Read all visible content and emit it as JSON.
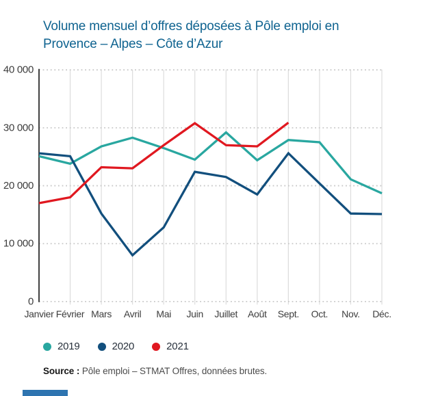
{
  "page": {
    "title": "Volume mensuel d’offres déposées à Pôle emploi en Provence – Alpes – Côte d’Azur",
    "title_color": "#0f6390",
    "accent_bar_color": "#2e74b0"
  },
  "chart_data": {
    "type": "line",
    "title": "Volume mensuel d’offres déposées à Pôle emploi en Provence – Alpes – Côte d’Azur",
    "categories": [
      "Janvier",
      "Février",
      "Mars",
      "Avril",
      "Mai",
      "Juin",
      "Juillet",
      "Août",
      "Sept.",
      "Oct.",
      "Nov.",
      "Déc."
    ],
    "y_ticks": [
      {
        "label": "40 000",
        "value": 40000
      },
      {
        "label": "30 000",
        "value": 30000
      },
      {
        "label": "20 000",
        "value": 20000
      },
      {
        "label": "10 000",
        "value": 10000
      },
      {
        "label": "0",
        "value": 0
      }
    ],
    "ylim": [
      0,
      40000
    ],
    "grid": {
      "vertical": "solid",
      "horizontal": "dotted"
    },
    "legend_position": "bottom",
    "series": [
      {
        "name": "2019",
        "color": "#29a7a0",
        "values": [
          25100,
          23800,
          26800,
          28300,
          26500,
          24500,
          29200,
          24400,
          27900,
          27500,
          21100,
          18700
        ]
      },
      {
        "name": "2020",
        "color": "#124f7d",
        "values": [
          25600,
          25100,
          15200,
          8000,
          12800,
          22400,
          21500,
          18500,
          25600,
          20400,
          15200,
          15100
        ]
      },
      {
        "name": "2021",
        "color": "#e01820",
        "values": [
          17000,
          18000,
          23200,
          23000,
          27000,
          30800,
          27000,
          26800,
          30900
        ]
      }
    ]
  },
  "legend": {
    "items": [
      {
        "label": "2019",
        "color": "#29a7a0"
      },
      {
        "label": "2020",
        "color": "#124f7d"
      },
      {
        "label": "2021",
        "color": "#e01820"
      }
    ]
  },
  "source": {
    "label": "Source :",
    "text": "Pôle emploi – STMAT Offres, données brutes."
  }
}
